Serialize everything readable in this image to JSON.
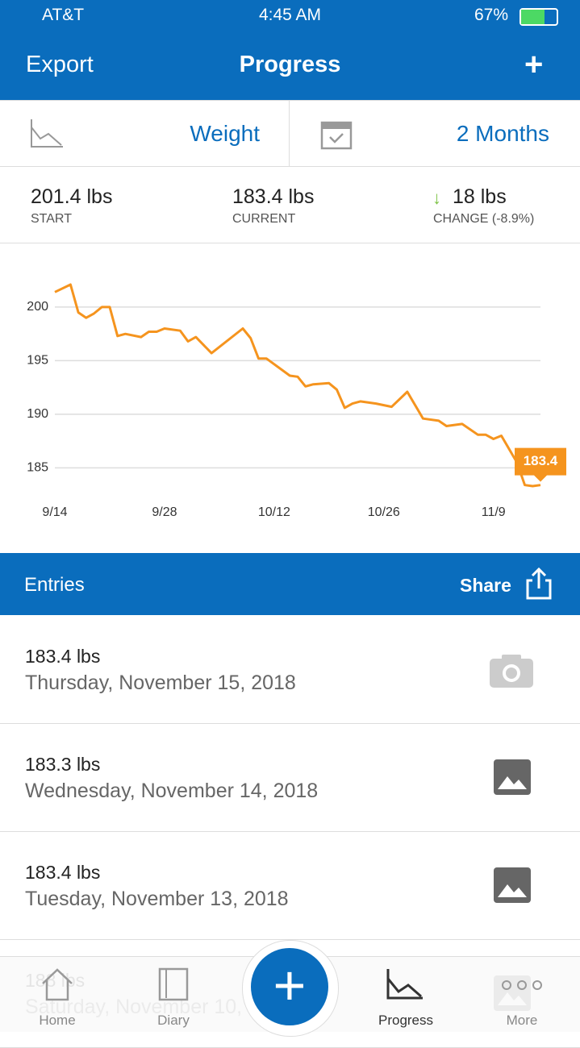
{
  "status_bar": {
    "carrier": "AT&T",
    "time": "4:45 AM",
    "battery": "67%"
  },
  "header": {
    "left": "Export",
    "title": "Progress"
  },
  "selectors": {
    "metric": "Weight",
    "range": "2 Months"
  },
  "summary": {
    "start": {
      "value": "201.4 lbs",
      "label": "START"
    },
    "current": {
      "value": "183.4 lbs",
      "label": "CURRENT"
    },
    "change": {
      "value": "18 lbs",
      "label": "CHANGE (-8.9%)"
    }
  },
  "chart_data": {
    "type": "line",
    "x": [
      "9/14",
      "9/16",
      "9/17",
      "9/18",
      "9/19",
      "9/20",
      "9/21",
      "9/22",
      "9/23",
      "9/25",
      "9/26",
      "9/27",
      "9/28",
      "9/30",
      "10/1",
      "10/2",
      "10/4",
      "10/8",
      "10/9",
      "10/10",
      "10/11",
      "10/14",
      "10/15",
      "10/16",
      "10/17",
      "10/19",
      "10/20",
      "10/21",
      "10/22",
      "10/23",
      "10/25",
      "10/27",
      "10/29",
      "10/31",
      "11/2",
      "11/3",
      "11/5",
      "11/7",
      "11/8",
      "11/9",
      "11/10",
      "11/12",
      "11/13",
      "11/14",
      "11/15"
    ],
    "series": [
      {
        "color": "#f5941e",
        "values": [
          201.4,
          202.1,
          199.5,
          199.0,
          199.4,
          200.0,
          200.0,
          197.3,
          197.5,
          197.2,
          197.7,
          197.7,
          198.0,
          197.8,
          196.8,
          197.2,
          195.7,
          198.0,
          197.1,
          195.2,
          195.2,
          193.6,
          193.5,
          192.6,
          192.8,
          192.9,
          192.3,
          190.6,
          191.0,
          191.2,
          191.0,
          190.7,
          192.1,
          189.6,
          189.4,
          188.9,
          189.1,
          188.1,
          188.1,
          187.7,
          188.0,
          185.5,
          183.4,
          183.3,
          183.4
        ]
      }
    ],
    "xlim": [
      "9/14",
      "11/15"
    ],
    "xticks": [
      "9/14",
      "9/28",
      "10/12",
      "10/26",
      "11/9"
    ],
    "ylim": [
      183,
      203
    ],
    "yticks": [
      185,
      190,
      195,
      200
    ],
    "grid": true
  },
  "entries": {
    "title": "Entries",
    "share": "Share",
    "rows": [
      {
        "weight": "183.4 lbs",
        "date": "Thursday, November 15, 2018"
      },
      {
        "weight": "183.3 lbs",
        "date": "Wednesday, November 14, 2018"
      },
      {
        "weight": "183.4 lbs",
        "date": "Tuesday, November 13, 2018"
      },
      {
        "weight": "188 lbs",
        "date": "Saturday, November 10,"
      }
    ]
  },
  "tabs": [
    "Home",
    "Diary",
    "Progress",
    "More"
  ]
}
